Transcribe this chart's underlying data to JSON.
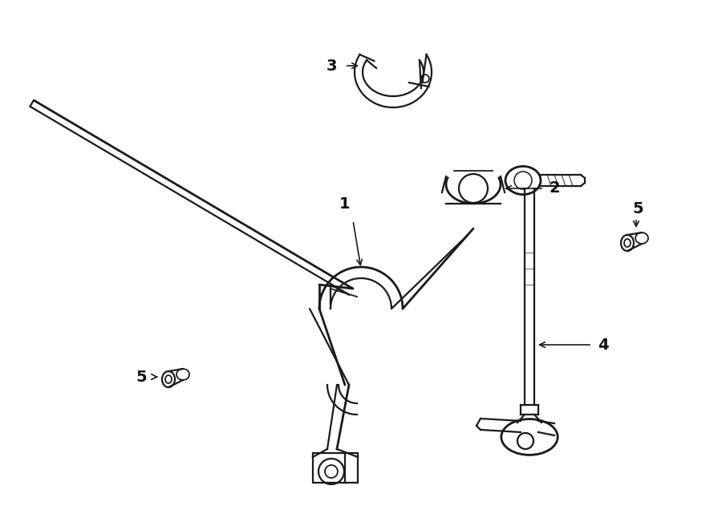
{
  "bg_color": "#ffffff",
  "line_color": "#1a1a1a",
  "label_color": "#111111",
  "lw": 1.6,
  "lw_thick": 2.0,
  "fig_width": 9.0,
  "fig_height": 6.61,
  "dpi": 100
}
